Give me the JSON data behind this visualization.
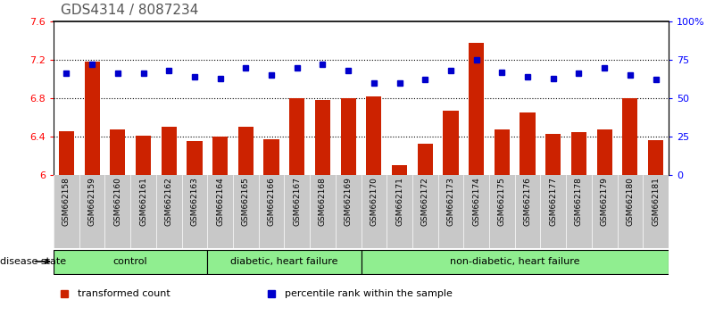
{
  "title": "GDS4314 / 8087234",
  "samples": [
    "GSM662158",
    "GSM662159",
    "GSM662160",
    "GSM662161",
    "GSM662162",
    "GSM662163",
    "GSM662164",
    "GSM662165",
    "GSM662166",
    "GSM662167",
    "GSM662168",
    "GSM662169",
    "GSM662170",
    "GSM662171",
    "GSM662172",
    "GSM662173",
    "GSM662174",
    "GSM662175",
    "GSM662176",
    "GSM662177",
    "GSM662178",
    "GSM662179",
    "GSM662180",
    "GSM662181"
  ],
  "bar_values": [
    6.46,
    7.18,
    6.47,
    6.41,
    6.5,
    6.35,
    6.4,
    6.5,
    6.37,
    6.8,
    6.78,
    6.8,
    6.82,
    6.1,
    6.33,
    6.67,
    7.38,
    6.47,
    6.65,
    6.43,
    6.45,
    6.47,
    6.8,
    6.36
  ],
  "dot_values": [
    66,
    72,
    66,
    66,
    68,
    64,
    63,
    70,
    65,
    70,
    72,
    68,
    60,
    60,
    62,
    68,
    75,
    67,
    64,
    63,
    66,
    70,
    65,
    62
  ],
  "ylim_left": [
    6.0,
    7.6
  ],
  "ylim_right": [
    0,
    100
  ],
  "yticks_left": [
    6.0,
    6.4,
    6.8,
    7.2,
    7.6
  ],
  "ytick_labels_left": [
    "6",
    "6.4",
    "6.8",
    "7.2",
    "7.6"
  ],
  "yticks_right": [
    0,
    25,
    50,
    75,
    100
  ],
  "ytick_labels_right": [
    "0",
    "25",
    "50",
    "75",
    "100%"
  ],
  "bar_color": "#cc2200",
  "dot_color": "#0000cc",
  "bar_width": 0.6,
  "grid_lines": [
    6.4,
    6.8,
    7.2
  ],
  "group_labels": [
    "control",
    "diabetic, heart failure",
    "non-diabetic, heart failure"
  ],
  "group_starts": [
    0,
    6,
    12
  ],
  "group_ends": [
    5,
    11,
    23
  ],
  "group_light_green": "#90EE90",
  "legend_items": [
    {
      "label": "transformed count",
      "color": "#cc2200"
    },
    {
      "label": "percentile rank within the sample",
      "color": "#0000cc"
    }
  ],
  "disease_state_label": "disease state",
  "xtick_bg": "#c8c8c8",
  "title_fontsize": 11,
  "title_color": "#555555"
}
